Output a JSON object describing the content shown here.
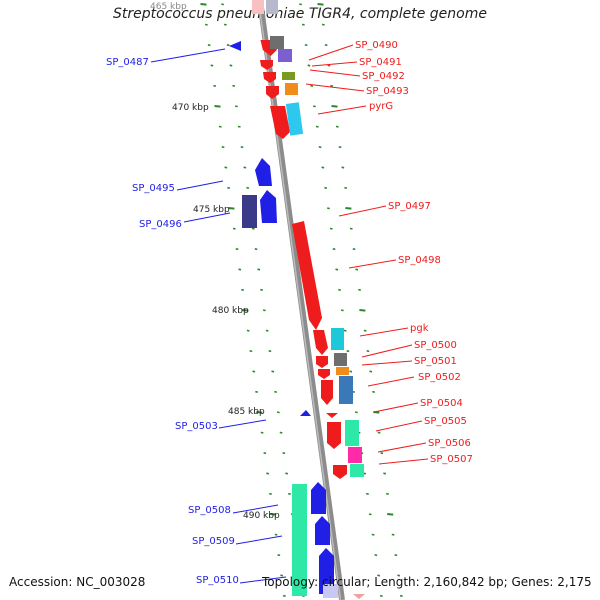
{
  "title": "Streptococcus pneumoniae TIGR4, complete genome",
  "footer": {
    "accession": "Accession: NC_003028",
    "summary": "Topology: circular; Length: 2,160,842 bp; Genes: 2,175"
  },
  "colors": {
    "forward_strand": "#ee1c1c",
    "reverse_strand": "#1f1fe6",
    "backbone": "#8c8c8c",
    "tick": "#2a8a2a",
    "kbp_label": "#222222"
  },
  "kbp_ticks": [
    "465 kbp",
    "470 kbp",
    "475 kbp",
    "480 kbp",
    "485 kbp",
    "490 kbp"
  ],
  "forward_genes": [
    "SP_0490",
    "SP_0491",
    "SP_0492",
    "SP_0493",
    "pyrG",
    "SP_0497",
    "SP_0498",
    "pgk",
    "SP_0500",
    "SP_0501",
    "SP_0502",
    "SP_0504",
    "SP_0505",
    "SP_0506",
    "SP_0507"
  ],
  "reverse_genes": [
    "SP_0487",
    "SP_0495",
    "SP_0496",
    "SP_0503",
    "SP_0508",
    "SP_0509",
    "SP_0510"
  ]
}
